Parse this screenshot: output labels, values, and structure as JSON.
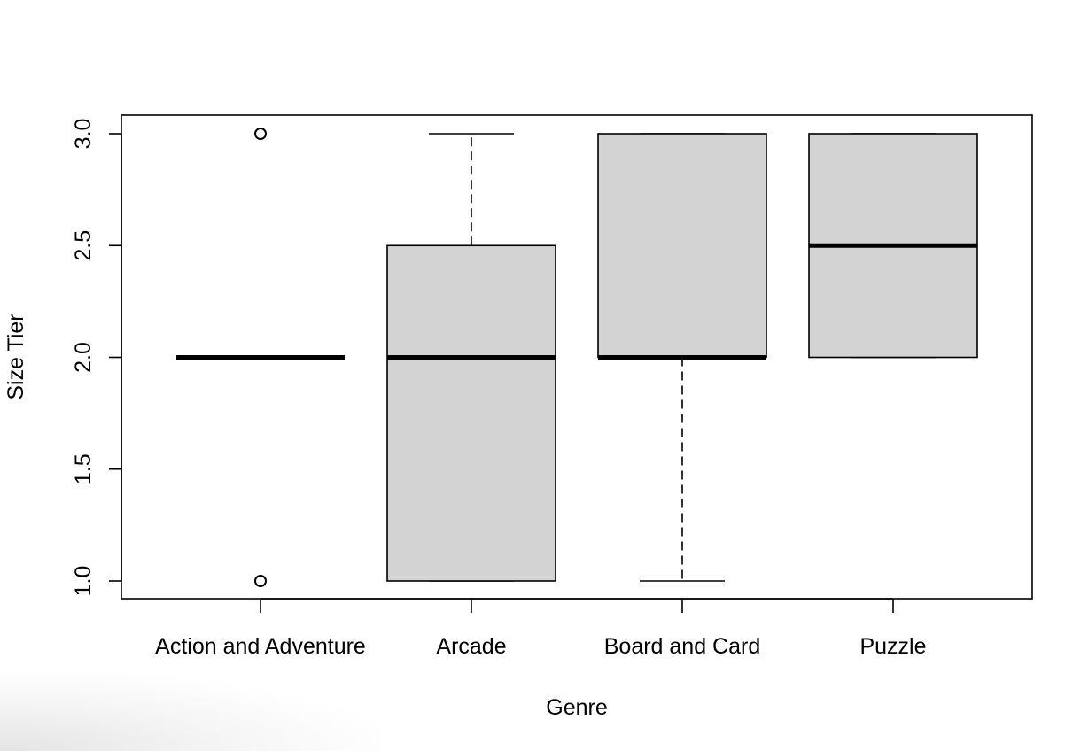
{
  "chart_data": {
    "type": "boxplot",
    "title": "",
    "xlabel": "Genre",
    "ylabel": "Size Tier",
    "ylim": [
      0.92,
      3.08
    ],
    "yticks": [
      "1.0",
      "1.5",
      "2.0",
      "2.5",
      "3.0"
    ],
    "ytick_values": [
      1.0,
      1.5,
      2.0,
      2.5,
      3.0
    ],
    "categories": [
      "Action and Adventure",
      "Arcade",
      "Board and Card",
      "Puzzle"
    ],
    "boxes": [
      {
        "category": "Action and Adventure",
        "whisker_low": 2.0,
        "q1": 2.0,
        "median": 2.0,
        "q3": 2.0,
        "whisker_high": 2.0,
        "outliers": [
          3.0,
          1.0
        ]
      },
      {
        "category": "Arcade",
        "whisker_low": 1.0,
        "q1": 1.0,
        "median": 2.0,
        "q3": 2.5,
        "whisker_high": 3.0,
        "outliers": []
      },
      {
        "category": "Board and Card",
        "whisker_low": 1.0,
        "q1": 2.0,
        "median": 2.0,
        "q3": 3.0,
        "whisker_high": 3.0,
        "outliers": []
      },
      {
        "category": "Puzzle",
        "whisker_low": 2.0,
        "q1": 2.0,
        "median": 2.5,
        "q3": 3.0,
        "whisker_high": 3.0,
        "outliers": []
      }
    ],
    "grid": false,
    "box_fill": "#d3d3d3",
    "line_color": "#000000"
  }
}
